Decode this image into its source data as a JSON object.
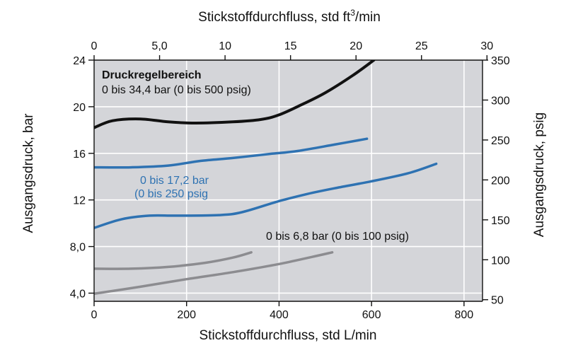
{
  "chart_data": {
    "type": "line",
    "title": "",
    "x_bottom": {
      "label": "Stickstoffdurchfluss, std L/min",
      "range": [
        0,
        840
      ],
      "ticks": [
        0,
        200,
        400,
        600,
        800
      ],
      "tick_labels": [
        "0",
        "200",
        "400",
        "600",
        "800"
      ]
    },
    "x_top": {
      "label_prefix": "Stickstoffdurchfluss, std ft",
      "label_sup": "3",
      "label_suffix": "/min",
      "range": [
        0,
        29.66
      ],
      "ticks": [
        0,
        5,
        10,
        15,
        20,
        25,
        30
      ],
      "tick_labels": [
        "0",
        "5,0",
        "10",
        "15",
        "20",
        "25",
        "30"
      ]
    },
    "y_left": {
      "label": "Ausgangsdruck, bar",
      "range": [
        3.3,
        24
      ],
      "ticks": [
        4,
        8,
        12,
        16,
        20,
        24
      ],
      "tick_labels": [
        "4,0",
        "8,0",
        "12",
        "16",
        "20",
        "24"
      ]
    },
    "y_right": {
      "label": "Ausgangsdruck, psig",
      "range": [
        48,
        350
      ],
      "ticks": [
        50,
        100,
        150,
        200,
        250,
        300,
        350
      ],
      "tick_labels": [
        "50",
        "100",
        "150",
        "200",
        "250",
        "300",
        "350"
      ]
    },
    "grid": true,
    "series": [
      {
        "group": "0 bis 34,4 bar (0 bis 500 psig)",
        "color": "#111111",
        "points": [
          [
            0,
            18.2
          ],
          [
            40,
            18.8
          ],
          [
            100,
            18.95
          ],
          [
            160,
            18.7
          ],
          [
            220,
            18.6
          ],
          [
            300,
            18.7
          ],
          [
            360,
            18.9
          ],
          [
            400,
            19.3
          ],
          [
            450,
            20.2
          ],
          [
            500,
            21.2
          ],
          [
            560,
            22.7
          ],
          [
            605,
            24.0
          ]
        ]
      },
      {
        "group": "0 bis 17,2 bar (0 bis 250 psig)",
        "color": "#2e72b2",
        "points": [
          [
            0,
            14.8
          ],
          [
            80,
            14.8
          ],
          [
            160,
            14.95
          ],
          [
            230,
            15.35
          ],
          [
            300,
            15.6
          ],
          [
            380,
            15.95
          ],
          [
            440,
            16.2
          ],
          [
            520,
            16.75
          ],
          [
            590,
            17.25
          ]
        ]
      },
      {
        "group": "0 bis 17,2 bar (0 bis 250 psig)",
        "color": "#2e72b2",
        "points": [
          [
            0,
            9.6
          ],
          [
            60,
            10.35
          ],
          [
            120,
            10.65
          ],
          [
            180,
            10.65
          ],
          [
            270,
            10.7
          ],
          [
            320,
            10.95
          ],
          [
            400,
            11.9
          ],
          [
            460,
            12.5
          ],
          [
            520,
            13.0
          ],
          [
            600,
            13.6
          ],
          [
            680,
            14.3
          ],
          [
            740,
            15.1
          ]
        ]
      },
      {
        "group": "0 bis 6,8 bar (0 bis 100 psig)",
        "color": "#8c8c90",
        "points": [
          [
            0,
            6.1
          ],
          [
            80,
            6.1
          ],
          [
            160,
            6.25
          ],
          [
            240,
            6.6
          ],
          [
            300,
            7.05
          ],
          [
            340,
            7.5
          ]
        ]
      },
      {
        "group": "0 bis 6,8 bar (0 bis 100 psig)",
        "color": "#8c8c90",
        "points": [
          [
            0,
            3.95
          ],
          [
            100,
            4.55
          ],
          [
            200,
            5.2
          ],
          [
            300,
            5.8
          ],
          [
            400,
            6.5
          ],
          [
            470,
            7.1
          ],
          [
            515,
            7.5
          ]
        ]
      }
    ],
    "annotations": {
      "black_heading": "Druckregelbereich",
      "black_range": "0 bis 34,4 bar (0 bis 500 psig)",
      "blue_line1": "0 bis 17,2 bar",
      "blue_line2": "(0 bis 250 psig",
      "gray_range": "0 bis 6,8 bar (0 bis 100 psig)"
    },
    "colors": {
      "plot_background": "#d4d5d9",
      "grid": "#ffffff",
      "axis": "#111111",
      "blue_label": "#2e72b2"
    }
  }
}
